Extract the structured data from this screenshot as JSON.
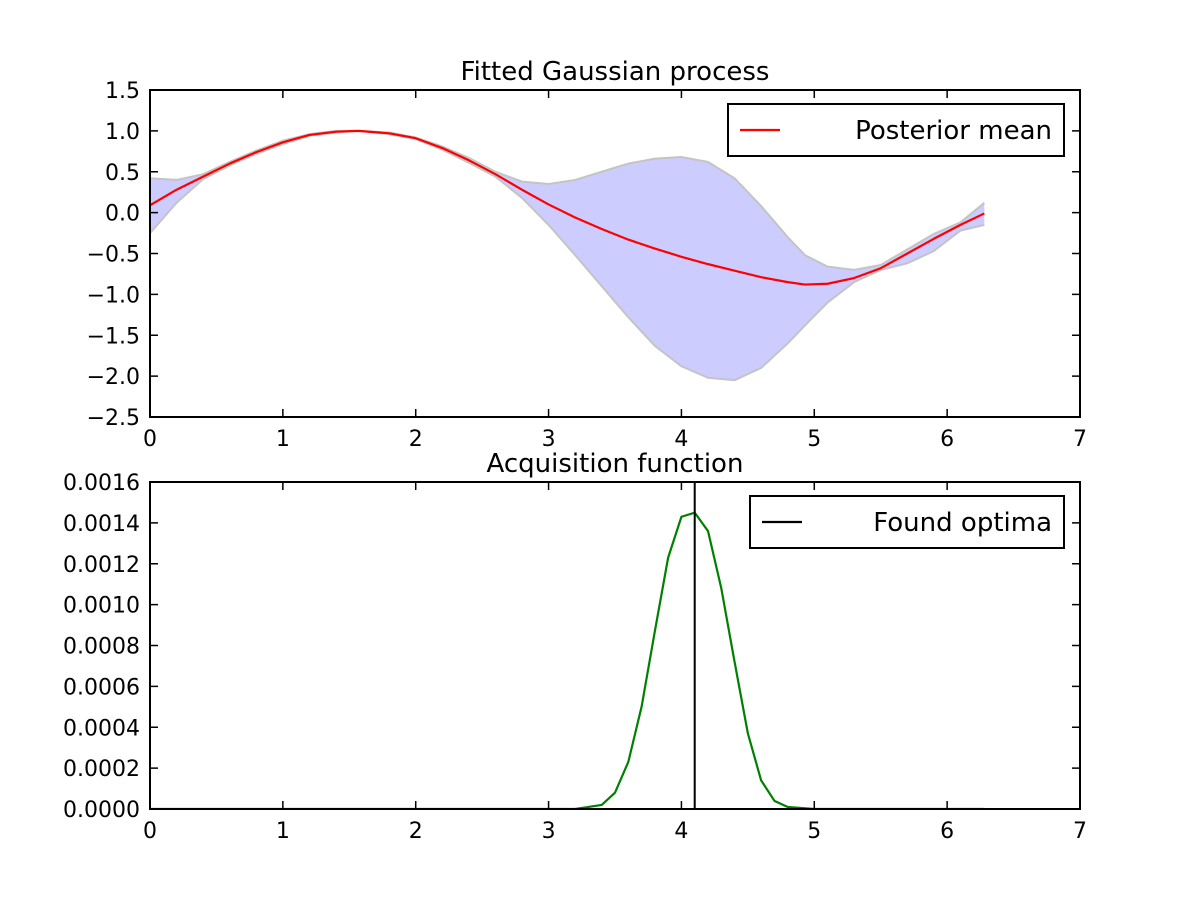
{
  "chart_data": [
    {
      "type": "line",
      "title": "Fitted Gaussian process",
      "xlim": [
        0,
        7
      ],
      "ylim": [
        -2.5,
        1.5
      ],
      "x_ticks": [
        "0",
        "1",
        "2",
        "3",
        "4",
        "5",
        "6",
        "7"
      ],
      "y_ticks": [
        "−2.5",
        "−2.0",
        "−1.5",
        "−1.0",
        "−0.5",
        "0.0",
        "0.5",
        "1.0",
        "1.5"
      ],
      "legend": {
        "location": "upper right",
        "entries": [
          "Posterior mean"
        ]
      },
      "colors": {
        "mean": "#ff0000",
        "band_fill": "#ccccff",
        "band_edge": "#c4c4c4"
      },
      "series": [
        {
          "name": "Posterior mean",
          "kind": "line",
          "x": [
            0,
            0.2,
            0.4,
            0.6,
            0.8,
            1.0,
            1.2,
            1.4,
            1.57,
            1.8,
            2.0,
            2.2,
            2.4,
            2.6,
            2.8,
            3.0,
            3.2,
            3.4,
            3.6,
            3.8,
            4.0,
            4.2,
            4.4,
            4.6,
            4.8,
            4.93,
            5.1,
            5.3,
            5.5,
            5.7,
            5.9,
            6.1,
            6.28
          ],
          "y": [
            0.09,
            0.28,
            0.44,
            0.6,
            0.74,
            0.86,
            0.95,
            0.99,
            1.0,
            0.97,
            0.91,
            0.79,
            0.64,
            0.47,
            0.28,
            0.1,
            -0.06,
            -0.2,
            -0.33,
            -0.44,
            -0.54,
            -0.63,
            -0.71,
            -0.79,
            -0.85,
            -0.88,
            -0.87,
            -0.8,
            -0.68,
            -0.5,
            -0.32,
            -0.15,
            -0.01
          ]
        },
        {
          "name": "",
          "kind": "confidence band",
          "x": [
            0,
            0.2,
            0.4,
            0.6,
            0.8,
            1.0,
            1.2,
            1.4,
            1.57,
            1.8,
            2.0,
            2.2,
            2.4,
            2.6,
            2.8,
            3.0,
            3.2,
            3.4,
            3.6,
            3.8,
            4.0,
            4.2,
            4.4,
            4.6,
            4.8,
            4.93,
            5.1,
            5.3,
            5.5,
            5.7,
            5.9,
            6.1,
            6.28
          ],
          "upper": [
            0.42,
            0.4,
            0.47,
            0.62,
            0.76,
            0.88,
            0.96,
            1.0,
            1.0,
            0.98,
            0.92,
            0.81,
            0.67,
            0.5,
            0.38,
            0.35,
            0.4,
            0.5,
            0.6,
            0.66,
            0.68,
            0.62,
            0.42,
            0.08,
            -0.3,
            -0.52,
            -0.66,
            -0.7,
            -0.64,
            -0.45,
            -0.26,
            -0.12,
            0.12
          ],
          "lower": [
            -0.25,
            0.12,
            0.41,
            0.58,
            0.72,
            0.84,
            0.94,
            0.98,
            1.0,
            0.96,
            0.9,
            0.77,
            0.61,
            0.44,
            0.18,
            -0.15,
            -0.52,
            -0.9,
            -1.28,
            -1.63,
            -1.88,
            -2.02,
            -2.05,
            -1.9,
            -1.6,
            -1.38,
            -1.1,
            -0.85,
            -0.7,
            -0.62,
            -0.47,
            -0.22,
            -0.15
          ]
        }
      ]
    },
    {
      "type": "line",
      "title": "Acquisition function",
      "xlim": [
        0,
        7
      ],
      "ylim": [
        0,
        0.0016
      ],
      "x_ticks": [
        "0",
        "1",
        "2",
        "3",
        "4",
        "5",
        "6",
        "7"
      ],
      "y_ticks": [
        "0.0000",
        "0.0002",
        "0.0004",
        "0.0006",
        "0.0008",
        "0.0010",
        "0.0012",
        "0.0014",
        "0.0016"
      ],
      "legend": {
        "location": "upper right",
        "entries": [
          "Found optima"
        ]
      },
      "colors": {
        "curve": "#008000",
        "optima": "#000000"
      },
      "series": [
        {
          "name": "",
          "kind": "line",
          "x": [
            0,
            1,
            2,
            3,
            3.2,
            3.4,
            3.5,
            3.6,
            3.7,
            3.8,
            3.9,
            4.0,
            4.1,
            4.2,
            4.3,
            4.4,
            4.5,
            4.6,
            4.7,
            4.8,
            5.0,
            6.0,
            6.28
          ],
          "y": [
            0,
            0,
            0,
            0,
            0,
            2e-05,
            8e-05,
            0.00023,
            0.0005,
            0.00087,
            0.00123,
            0.00143,
            0.00145,
            0.00136,
            0.00108,
            0.00072,
            0.00037,
            0.00014,
            4e-05,
            1e-05,
            0,
            0,
            0
          ]
        },
        {
          "name": "Found optima",
          "kind": "vertical line",
          "x": 4.1
        }
      ]
    }
  ]
}
